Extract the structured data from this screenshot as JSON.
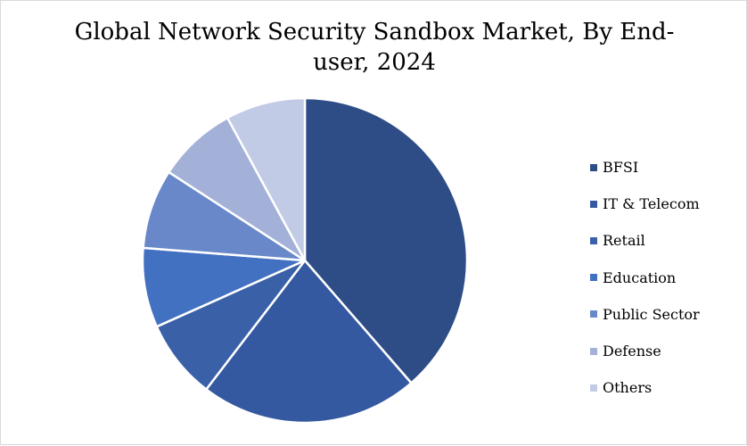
{
  "chart_data": {
    "type": "pie",
    "title": "Global Network Security Sandbox Market, By End-user, 2024",
    "categories": [
      "BFSI",
      "IT & Telecom",
      "Retail",
      "Education",
      "Public Sector",
      "Defense",
      "Others"
    ],
    "values": [
      39,
      22,
      8,
      8,
      8,
      8,
      8
    ],
    "colors": [
      "#2E4D87",
      "#3559A0",
      "#3A60A8",
      "#4371C1",
      "#6988C9",
      "#A3B1D8",
      "#C2CBE5"
    ],
    "legend_position": "right"
  }
}
